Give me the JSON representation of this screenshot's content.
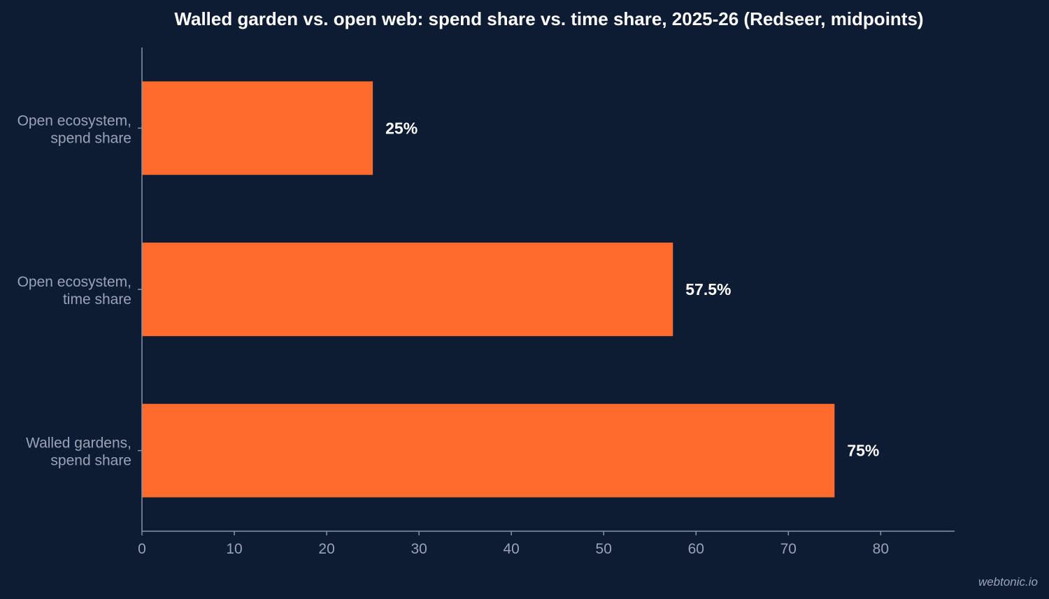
{
  "chart_data": {
    "type": "bar",
    "orientation": "horizontal",
    "title": "Walled garden vs. open web: spend share vs. time share, 2025-26 (Redseer, midpoints)",
    "categories": [
      [
        "Open ecosystem,",
        "spend share"
      ],
      [
        "Open ecosystem,",
        "time share"
      ],
      [
        "Walled gardens,",
        "spend share"
      ]
    ],
    "values": [
      25,
      57.5,
      75
    ],
    "value_labels": [
      "25%",
      "57.5%",
      "75%"
    ],
    "xlim": [
      0,
      88
    ],
    "xticks": [
      0,
      10,
      20,
      30,
      40,
      50,
      60,
      70,
      80
    ],
    "xlabel": "",
    "ylabel": "",
    "grid": false,
    "colors": {
      "bar": "#ff6b2c",
      "background": "#0d1b33",
      "axis": "#8a93a6",
      "text": "#ffffff",
      "muted_text": "#9aa3b5"
    }
  },
  "watermark": "webtonic.io"
}
